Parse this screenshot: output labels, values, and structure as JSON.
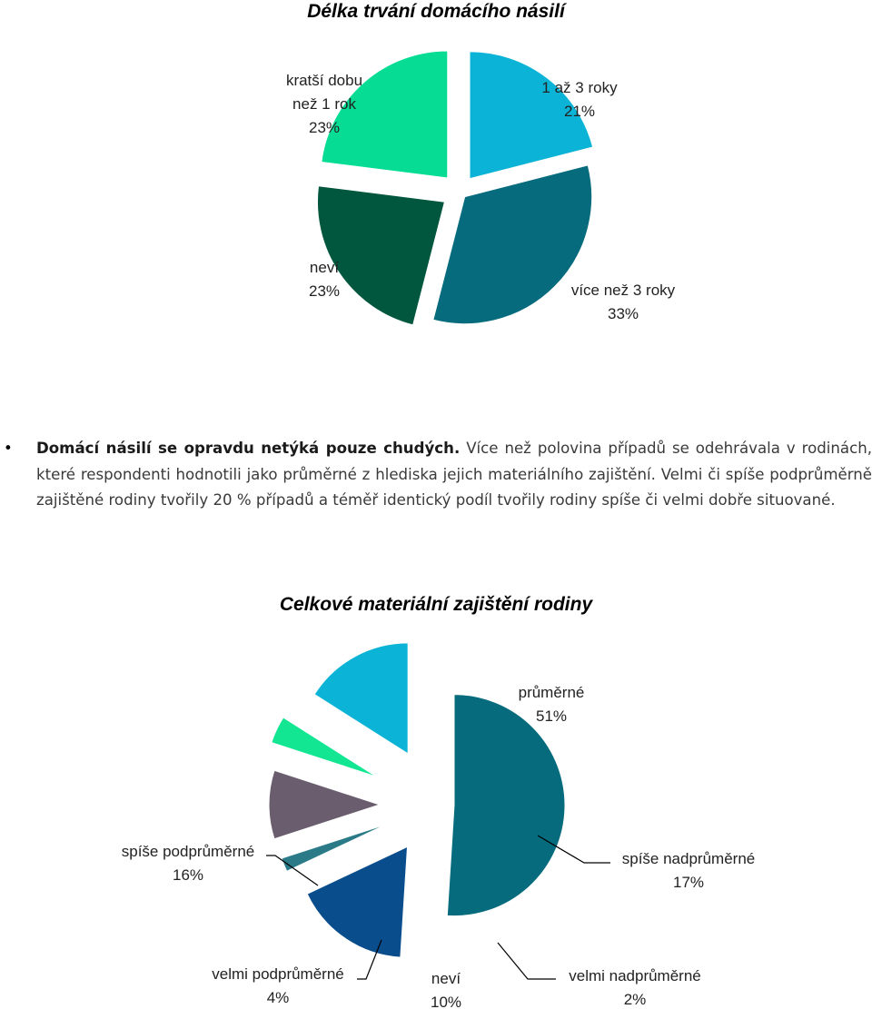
{
  "paragraph": {
    "bullet": "•",
    "lead": "Domácí násilí se opravdu netýká pouze chudých.",
    "body": " Více než polovina případů se odehrávala v rodinách, které respondenti hodnotili jako průměrné z hlediska jejich materiálního zajištění. Velmi či spíše podprůměrně zajištěné rodiny tvořily 20 % případů a téměř identický podíl tvořily rodiny spíše či velmi dobře situované."
  },
  "chart_data": [
    {
      "type": "pie",
      "title": "Délka trvání domácího násilí",
      "exploded": true,
      "slices": [
        {
          "label": "1 až 3 roky",
          "value": 21,
          "display": "21%",
          "color": "#0bb3d6"
        },
        {
          "label": "více než 3 roky",
          "value": 33,
          "display": "33%",
          "color": "#066b7d"
        },
        {
          "label": "neví",
          "value": 23,
          "display": "23%",
          "color": "#01573d"
        },
        {
          "label": "kratší dobu než 1 rok",
          "value": 23,
          "display": "23%",
          "color": "#06dc94"
        }
      ]
    },
    {
      "type": "pie",
      "title": "Celkové materiální zajištění rodiny",
      "exploded": true,
      "slices": [
        {
          "label": "průměrné",
          "value": 51,
          "display": "51%",
          "color": "#066b7d"
        },
        {
          "label": "spíše nadprůměrné",
          "value": 17,
          "display": "17%",
          "color": "#0a4d8d"
        },
        {
          "label": "velmi nadprůměrné",
          "value": 2,
          "display": "2%",
          "color": "#2a7b87"
        },
        {
          "label": "neví",
          "value": 10,
          "display": "10%",
          "color": "#6a5e6e"
        },
        {
          "label": "velmi podprůměrné",
          "value": 4,
          "display": "4%",
          "color": "#13e693"
        },
        {
          "label": "spíše podprůměrné",
          "value": 16,
          "display": "16%",
          "color": "#0bb3d6"
        }
      ]
    }
  ]
}
